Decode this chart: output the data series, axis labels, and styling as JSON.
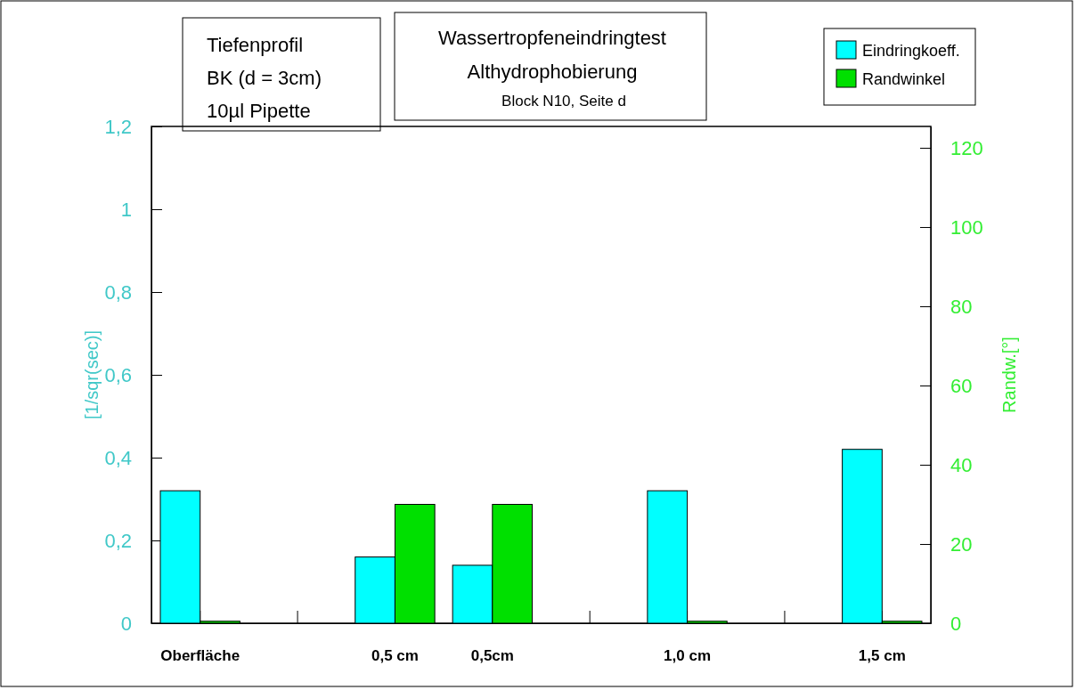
{
  "chart_data": {
    "type": "bar",
    "title": "Wassertropfeneindringtest",
    "subtitle": "Althydrophobierung",
    "annotations": [
      "Tiefenprofil",
      "BK (d = 3cm)",
      "10µl Pipette",
      "Block N10, Seite d"
    ],
    "ylabel": "[1/sqr(sec)]",
    "y2label": "Randw.[°]",
    "categories": [
      "Oberfläche",
      null,
      "0,5 cm",
      "0,5cm",
      null,
      "1,0 cm",
      null,
      "1,5 cm"
    ],
    "series": [
      {
        "name": "Eindringkoeff.",
        "color": "#00ffff",
        "values": [
          0.32,
          null,
          0.16,
          0.14,
          null,
          0.32,
          null,
          0.42
        ]
      },
      {
        "name": "Randwinkel",
        "color": "#00e000",
        "axis": "y2",
        "values": [
          0.5,
          null,
          30,
          30,
          null,
          0.5,
          null,
          0.5
        ]
      }
    ],
    "ylim": [
      0,
      1.2
    ],
    "yticks": [
      0,
      {
        "value": 0.2,
        "label": "0,2"
      },
      {
        "value": 0.4,
        "label": "0,4"
      },
      {
        "value": 0.6,
        "label": "0,6"
      },
      {
        "value": 0.8,
        "label": "0,8"
      },
      1,
      {
        "value": 1.2,
        "label": "1,2"
      }
    ],
    "y2lim": [
      0,
      125.4
    ],
    "y2ticks": [
      0,
      20,
      40,
      60,
      80,
      100,
      120
    ],
    "legend": "top right"
  }
}
